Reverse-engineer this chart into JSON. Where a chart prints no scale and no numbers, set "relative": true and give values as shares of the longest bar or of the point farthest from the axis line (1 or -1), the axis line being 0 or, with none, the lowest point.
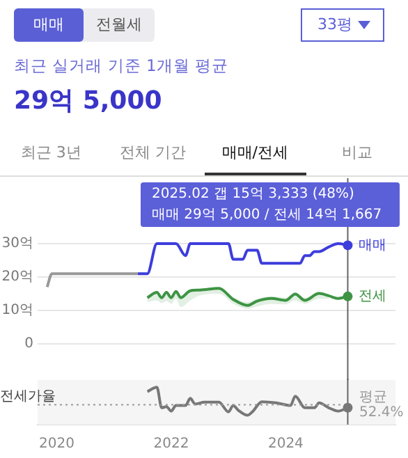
{
  "chart_data": [
    {
      "type": "line",
      "title": "29억 5,000",
      "subtitle": "최근 실거래 기준 1개월 평균",
      "annotations": [
        "매매",
        "전월세",
        "33평",
        "최근 3년",
        "전체 기간",
        "매매/전세",
        "비교",
        "2025.02  갭 15억 3,333 (48%)",
        "매매 29억 5,000 / 전세 14억 1,667"
      ],
      "xlim": [
        "2019-09",
        "2025-12"
      ],
      "ylim": [
        0,
        30
      ],
      "yticks": [
        0,
        {
          "value": 10,
          "label": "10억"
        },
        {
          "value": 20,
          "label": "20억"
        },
        {
          "value": 30,
          "label": "30억"
        }
      ],
      "tick_labels": "y",
      "grid": "y",
      "legend": false,
      "ref_lines": [
        {
          "axis": "x",
          "value": "2025-02",
          "color": "#666666"
        }
      ],
      "series": [
        {
          "color": "#999999",
          "x": [
            "2019-11",
            "2019-12",
            "2021-06"
          ],
          "values": [
            17,
            21,
            21
          ]
        },
        {
          "name": "매매",
          "color": "#3d3ddc",
          "x": [
            "2021-06",
            "2021-08",
            "2021-10",
            "2022-02",
            "2022-04",
            "2022-05",
            "2023-01",
            "2023-02",
            "2023-04",
            "2023-05",
            "2023-07",
            "2023-08",
            "2024-04",
            "2024-05",
            "2024-06",
            "2024-07",
            "2024-08",
            "2024-10",
            "2024-12",
            "2025-02"
          ],
          "values": [
            21,
            21,
            30,
            30,
            26.4,
            30,
            30,
            25.3,
            25.3,
            28,
            28,
            24.1,
            24.1,
            26.4,
            26.4,
            27.6,
            27.6,
            29,
            30,
            29.5
          ]
        },
        {
          "name": "전세",
          "color": "#3e9444",
          "x": [
            "2021-08",
            "2021-10",
            "2021-11",
            "2021-12",
            "2022-01",
            "2022-02",
            "2022-03",
            "2022-05",
            "2022-07",
            "2022-11",
            "2023-02",
            "2023-05",
            "2023-07",
            "2023-10",
            "2024-01",
            "2024-03",
            "2024-05",
            "2024-08",
            "2024-10",
            "2024-12",
            "2025-02"
          ],
          "values": [
            13.8,
            15.4,
            13.8,
            15.4,
            13.8,
            15.7,
            13.8,
            15.9,
            16.1,
            16.6,
            13.3,
            11.5,
            12.8,
            13.6,
            13.0,
            14.9,
            13.0,
            15.1,
            14.4,
            13.6,
            14.2
          ],
          "lower": [
            12.5,
            13.0,
            12.2,
            12.8,
            12.0,
            13.5,
            11.0,
            13.0,
            14.5,
            15.0,
            12.0,
            10.5,
            11.2,
            12.0,
            11.8,
            13.0,
            12.0,
            13.5,
            13.5,
            null,
            null
          ],
          "upper": [
            14.5,
            15.8,
            14.5,
            15.8,
            14.5,
            16.0,
            14.5,
            16.2,
            16.5,
            16.8,
            14.0,
            12.5,
            13.5,
            14.2,
            13.8,
            15.4,
            13.8,
            15.5,
            14.8,
            null,
            null
          ]
        }
      ]
    },
    {
      "type": "line",
      "ylabel": "전세가율",
      "relative": true,
      "xlim": [
        "2019-09",
        "2025-12"
      ],
      "xticks": [
        "2020",
        "2022",
        "2024"
      ],
      "tick_labels": "x",
      "grid": false,
      "ref_lines": [
        {
          "axis": "y",
          "value": 0.53,
          "label": "평균 52.4%",
          "color": "#999999",
          "line_style": "dotted"
        },
        {
          "axis": "x",
          "value": "2025-02",
          "color": "#666666"
        }
      ],
      "series": [
        {
          "color": "#777777",
          "x": [
            "2021-08",
            "2021-10",
            "2021-11",
            "2021-12",
            "2022-01",
            "2022-02",
            "2022-04",
            "2022-05",
            "2022-06",
            "2022-08",
            "2022-11",
            "2023-01",
            "2023-02",
            "2023-03",
            "2023-05",
            "2023-06",
            "2023-08",
            "2023-11",
            "2024-02",
            "2024-03",
            "2024-05",
            "2024-07",
            "2024-08",
            "2024-10",
            "2024-12",
            "2025-02"
          ],
          "values": [
            0.88,
            1,
            0.45,
            0.48,
            0.36,
            0.51,
            0.51,
            0.7,
            0.55,
            0.6,
            0.6,
            0.34,
            0.51,
            0.39,
            0.25,
            0.34,
            0.61,
            0.58,
            0.51,
            0.76,
            0.45,
            0.45,
            0.58,
            0.45,
            0.36,
            0.45
          ]
        }
      ]
    }
  ]
}
